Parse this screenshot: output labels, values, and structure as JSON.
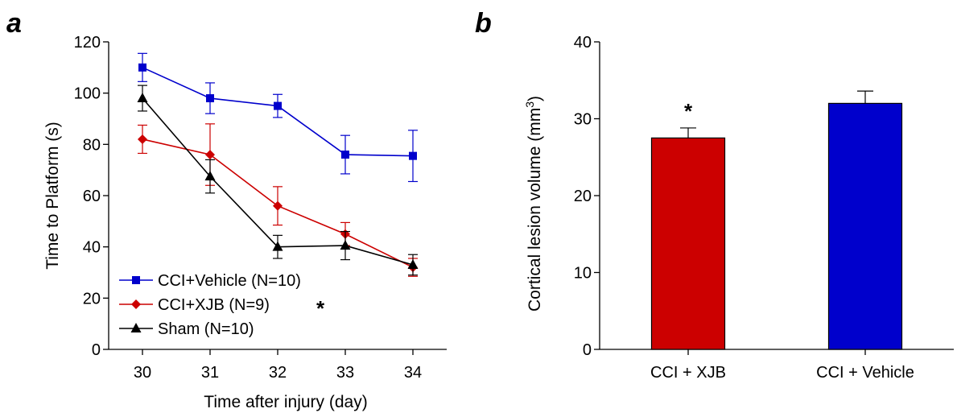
{
  "chart_data": [
    {
      "type": "line",
      "panel_label": "a",
      "xlabel": "Time after injury (day)",
      "ylabel": "Time to Platform (s)",
      "x": [
        30,
        31,
        32,
        33,
        34
      ],
      "xlim": [
        29.5,
        34.5
      ],
      "ylim": [
        0,
        120
      ],
      "yticks": [
        0,
        20,
        40,
        60,
        80,
        100,
        120
      ],
      "legend_position": "bottom-left",
      "series": [
        {
          "name": "CCI+Vehicle (N=10)",
          "color": "#0000CC",
          "marker": "square",
          "values": [
            110,
            98,
            95,
            76,
            75.5
          ],
          "errors": [
            5.5,
            6,
            4.5,
            7.5,
            10
          ]
        },
        {
          "name": "CCI+XJB (N=9)",
          "color": "#CC0000",
          "marker": "diamond",
          "values": [
            82,
            76,
            56,
            45,
            32
          ],
          "errors": [
            5.5,
            12,
            7.5,
            4.5,
            3.5
          ]
        },
        {
          "name": "Sham (N=10)",
          "color": "#000000",
          "marker": "triangle",
          "values": [
            98,
            67.5,
            40,
            40.5,
            33
          ],
          "errors": [
            5,
            6.5,
            4.5,
            5.5,
            4
          ]
        }
      ],
      "annotations": [
        {
          "text": "*",
          "near": "CCI+XJB (N=9)"
        }
      ]
    },
    {
      "type": "bar",
      "panel_label": "b",
      "xlabel": "",
      "ylabel_prefix": "Cortical lesion volume (mm",
      "ylabel_superscript": "3",
      "ylabel_suffix": ")",
      "ylim": [
        0,
        40
      ],
      "yticks": [
        0,
        10,
        20,
        30,
        40
      ],
      "categories": [
        "CCI + XJB",
        "CCI + Vehicle"
      ],
      "values": [
        27.5,
        32
      ],
      "errors": [
        1.3,
        1.6
      ],
      "colors": [
        "#CC0000",
        "#0000CC"
      ],
      "annotations": [
        {
          "text": "*",
          "category": "CCI + XJB"
        }
      ]
    }
  ]
}
